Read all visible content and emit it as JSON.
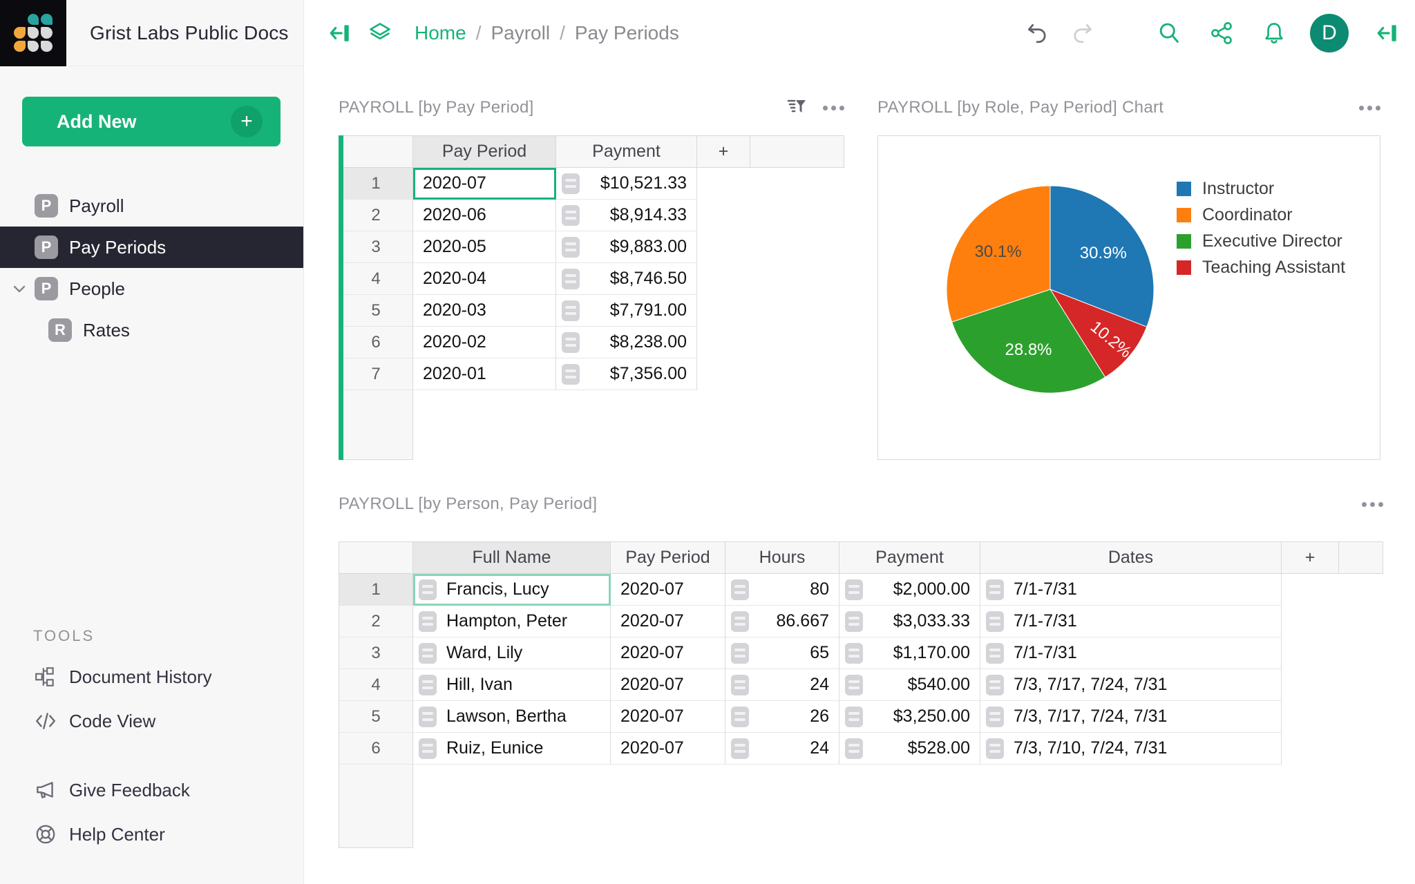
{
  "header": {
    "doc_title": "Grist Labs Public Docs",
    "breadcrumb": {
      "home": "Home",
      "sep1": "/",
      "level1": "Payroll",
      "sep2": "/",
      "level2": "Pay Periods"
    },
    "avatar_initial": "D"
  },
  "sidebar": {
    "add_new_label": "Add New",
    "add_new_plus": "+",
    "pages": {
      "payroll": {
        "label": "Payroll",
        "icon_letter": "P"
      },
      "pay_periods": {
        "label": "Pay Periods",
        "icon_letter": "P"
      },
      "people": {
        "label": "People",
        "icon_letter": "P"
      },
      "rates": {
        "label": "Rates",
        "icon_letter": "R"
      }
    },
    "tools_heading": "TOOLS",
    "tools": {
      "document_history": "Document History",
      "code_view": "Code View",
      "give_feedback": "Give Feedback",
      "help_center": "Help Center"
    }
  },
  "widgets": {
    "pay_period_table": {
      "title": "PAYROLL [by Pay Period]",
      "columns": [
        "Pay Period",
        "Payment"
      ],
      "add_column_label": "+",
      "rows": [
        {
          "period": "2020-07",
          "payment": "$10,521.33",
          "cursor": "period"
        },
        {
          "period": "2020-06",
          "payment": "$8,914.33"
        },
        {
          "period": "2020-05",
          "payment": "$9,883.00"
        },
        {
          "period": "2020-04",
          "payment": "$8,746.50"
        },
        {
          "period": "2020-03",
          "payment": "$7,791.00"
        },
        {
          "period": "2020-02",
          "payment": "$8,238.00"
        },
        {
          "period": "2020-01",
          "payment": "$7,356.00"
        }
      ]
    },
    "chart": {
      "title": "PAYROLL [by Role, Pay Period] Chart"
    },
    "person_table": {
      "title": "PAYROLL [by Person, Pay Period]",
      "columns": [
        "Full Name",
        "Pay Period",
        "Hours",
        "Payment",
        "Dates"
      ],
      "add_column_label": "+",
      "rows": [
        {
          "name": "Francis, Lucy",
          "period": "2020-07",
          "hours": "80",
          "payment": "$2,000.00",
          "dates": "7/1-7/31",
          "cursor": "name"
        },
        {
          "name": "Hampton, Peter",
          "period": "2020-07",
          "hours": "86.667",
          "payment": "$3,033.33",
          "dates": "7/1-7/31"
        },
        {
          "name": "Ward, Lily",
          "period": "2020-07",
          "hours": "65",
          "payment": "$1,170.00",
          "dates": "7/1-7/31"
        },
        {
          "name": "Hill, Ivan",
          "period": "2020-07",
          "hours": "24",
          "payment": "$540.00",
          "dates": "7/3, 7/17, 7/24, 7/31"
        },
        {
          "name": "Lawson, Bertha",
          "period": "2020-07",
          "hours": "26",
          "payment": "$3,250.00",
          "dates": "7/3, 7/17, 7/24, 7/31"
        },
        {
          "name": "Ruiz, Eunice",
          "period": "2020-07",
          "hours": "24",
          "payment": "$528.00",
          "dates": "7/3, 7/10, 7/24, 7/31"
        }
      ]
    }
  },
  "chart_data": {
    "type": "pie",
    "title": "PAYROLL [by Role, Pay Period] Chart",
    "legend_position": "right",
    "unit": "percent",
    "series": [
      {
        "label": "Instructor",
        "value": 30.9,
        "pct_label": "30.9%",
        "color": "#1f77b4",
        "label_color": "#ffffff"
      },
      {
        "label": "Coordinator",
        "value": 30.1,
        "pct_label": "30.1%",
        "color": "#ff7f0e",
        "label_color": "#4a4a4a"
      },
      {
        "label": "Executive Director",
        "value": 28.8,
        "pct_label": "28.8%",
        "color": "#2ca02c",
        "label_color": "#ffffff"
      },
      {
        "label": "Teaching Assistant",
        "value": 10.2,
        "pct_label": "10.2%",
        "color": "#d62728",
        "label_color": "#ffffff"
      }
    ],
    "clockwise_order_from_top": [
      "Instructor",
      "Teaching Assistant",
      "Executive Director",
      "Coordinator"
    ]
  },
  "colors": {
    "accent_green": "#16b378",
    "selected_nav_bg": "#262633",
    "avatar_bg": "#0d8a72",
    "active_cursor": "#16b378",
    "inactive_cursor": "#8ad5b6"
  }
}
